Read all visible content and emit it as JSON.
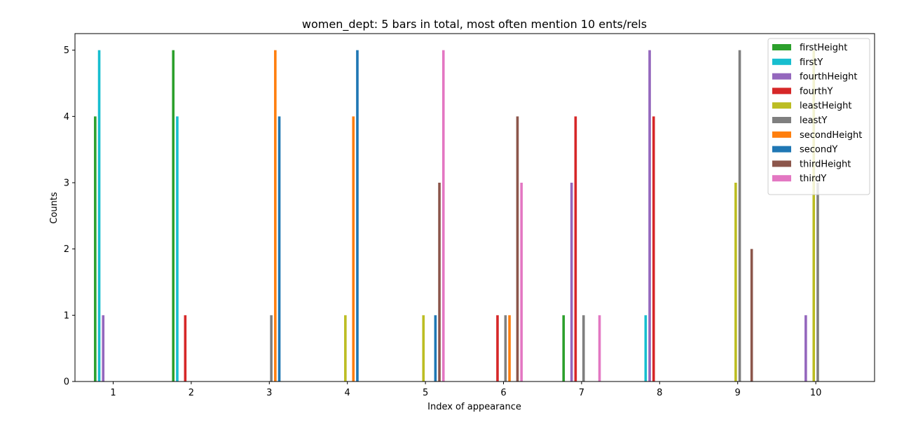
{
  "chart_data": {
    "type": "bar",
    "title": "women_dept: 5 bars in total, most often mention  10 ents/rels",
    "xlabel": "Index of appearance",
    "ylabel": "Counts",
    "categories": [
      "1",
      "2",
      "3",
      "4",
      "5",
      "6",
      "7",
      "8",
      "9",
      "10"
    ],
    "ylim": [
      0,
      5.25
    ],
    "yticks": [
      0,
      1,
      2,
      3,
      4,
      5
    ],
    "legend_position": "top-right",
    "series": [
      {
        "name": "firstHeight",
        "color": "#2ca02c",
        "values": [
          4,
          5,
          0,
          0,
          0,
          0,
          1,
          0,
          0,
          0
        ]
      },
      {
        "name": "firstY",
        "color": "#17becf",
        "values": [
          5,
          4,
          0,
          0,
          0,
          0,
          0,
          1,
          0,
          0
        ]
      },
      {
        "name": "fourthHeight",
        "color": "#9467bd",
        "values": [
          1,
          0,
          0,
          0,
          0,
          0,
          3,
          5,
          0,
          1
        ]
      },
      {
        "name": "fourthY",
        "color": "#d62728",
        "values": [
          0,
          1,
          0,
          0,
          0,
          1,
          4,
          4,
          0,
          0
        ]
      },
      {
        "name": "leastHeight",
        "color": "#bcbd22",
        "values": [
          0,
          0,
          0,
          1,
          1,
          0,
          0,
          0,
          3,
          5
        ]
      },
      {
        "name": "leastY",
        "color": "#7f7f7f",
        "values": [
          0,
          0,
          1,
          0,
          0,
          1,
          1,
          0,
          5,
          3
        ]
      },
      {
        "name": "secondHeight",
        "color": "#ff7f0e",
        "values": [
          0,
          0,
          5,
          4,
          0,
          1,
          0,
          0,
          0,
          0
        ]
      },
      {
        "name": "secondY",
        "color": "#1f77b4",
        "values": [
          0,
          0,
          4,
          5,
          1,
          0,
          0,
          0,
          0,
          0
        ]
      },
      {
        "name": "thirdHeight",
        "color": "#8c564b",
        "values": [
          0,
          0,
          0,
          0,
          3,
          4,
          0,
          0,
          2,
          0
        ]
      },
      {
        "name": "thirdY",
        "color": "#e377c2",
        "values": [
          0,
          0,
          0,
          0,
          5,
          3,
          1,
          0,
          0,
          0
        ]
      }
    ]
  }
}
